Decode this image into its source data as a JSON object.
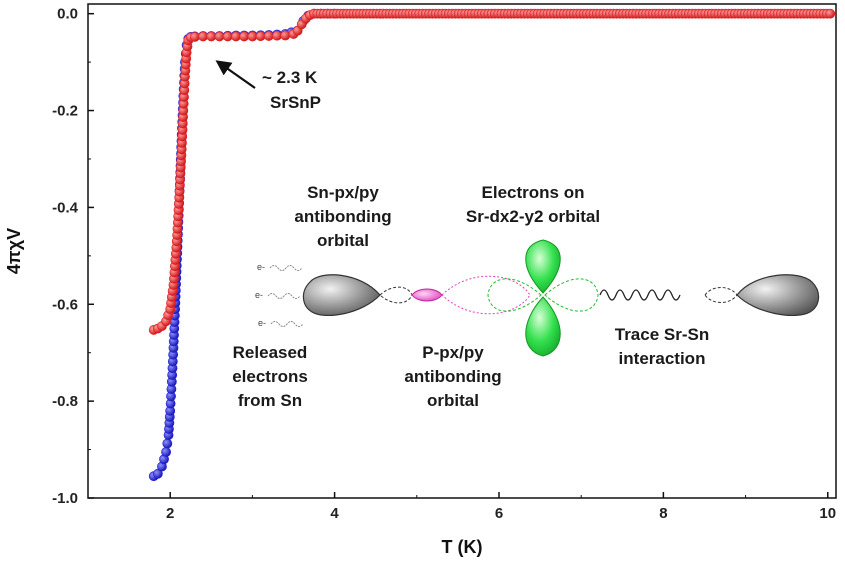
{
  "chart_data": {
    "type": "scatter",
    "title": "",
    "xlabel": "T (K)",
    "ylabel": "4πχV",
    "xlim": [
      1.0,
      10.1
    ],
    "ylim": [
      -1.0,
      0.02
    ],
    "xticks": [
      2,
      4,
      6,
      8,
      10
    ],
    "yticks": [
      0.0,
      -0.2,
      -0.4,
      -0.6,
      -0.8,
      -1.0
    ],
    "ytick_labels": [
      "0.0",
      "-0.2",
      "-0.4",
      "-0.6",
      "-0.8",
      "-1.0"
    ],
    "grid": false,
    "series": [
      {
        "name": "",
        "color": "#1f1fd6",
        "x": [
          1.8,
          1.85,
          1.9,
          1.95,
          1.98,
          2.0,
          2.02,
          2.04,
          2.06,
          2.08,
          2.1,
          2.12,
          2.14,
          2.16,
          2.18,
          2.2,
          2.22,
          2.25,
          2.3,
          2.4,
          2.6,
          2.8,
          3.0,
          3.2,
          3.4,
          3.55,
          3.62,
          3.68,
          3.75,
          4.0
        ],
        "y": [
          -0.955,
          -0.95,
          -0.935,
          -0.905,
          -0.87,
          -0.82,
          -0.76,
          -0.69,
          -0.61,
          -0.52,
          -0.43,
          -0.34,
          -0.25,
          -0.17,
          -0.1,
          -0.065,
          -0.052,
          -0.048,
          -0.047,
          -0.046,
          -0.046,
          -0.045,
          -0.045,
          -0.044,
          -0.042,
          -0.035,
          -0.015,
          -0.004,
          0.0,
          0.0
        ]
      },
      {
        "name": "",
        "color": "#e02020",
        "x": [
          1.8,
          1.85,
          1.9,
          1.95,
          2.0,
          2.04,
          2.08,
          2.11,
          2.14,
          2.16,
          2.18,
          2.2,
          2.22,
          2.25,
          2.3,
          2.4,
          2.6,
          2.8,
          3.0,
          3.2,
          3.4,
          3.5,
          3.55,
          3.6,
          3.65,
          3.7,
          3.75
        ],
        "y": [
          -0.653,
          -0.65,
          -0.645,
          -0.635,
          -0.61,
          -0.56,
          -0.47,
          -0.38,
          -0.28,
          -0.2,
          -0.13,
          -0.08,
          -0.055,
          -0.049,
          -0.048,
          -0.047,
          -0.047,
          -0.047,
          -0.047,
          -0.046,
          -0.045,
          -0.042,
          -0.035,
          -0.022,
          -0.01,
          -0.003,
          0.0
        ],
        "dense_tail": {
          "x_start": 3.75,
          "x_end": 10.05,
          "y": 0.0
        }
      }
    ],
    "annotations": {
      "transition": [
        "~ 2.3 K",
        "SrSnP"
      ],
      "sn_orbital": [
        "Sn-px/py",
        "antibonding",
        "orbital"
      ],
      "sr_orbital": [
        "Electrons on",
        "Sr-dx2-y2 orbital"
      ],
      "p_orbital": [
        "P-px/py",
        "antibonding",
        "orbital"
      ],
      "released": [
        "Released",
        "electrons",
        "from Sn"
      ],
      "trace": [
        "Trace Sr-Sn",
        "interaction"
      ],
      "electron_symbol": "e-"
    },
    "colors": {
      "sn_gray": "#8a8a8a",
      "sr_green": "#22dd44",
      "p_pink": "#e040c0",
      "axis": "#111111"
    }
  }
}
